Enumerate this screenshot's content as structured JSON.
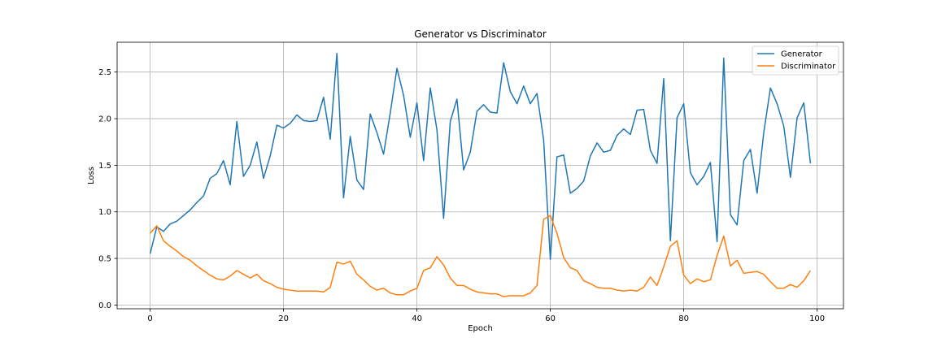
{
  "chart_data": {
    "type": "line",
    "title": "Generator vs Discriminator",
    "xlabel": "Epoch",
    "ylabel": "Loss",
    "xlim": [
      -4.95,
      103.95
    ],
    "ylim": [
      -0.04,
      2.82
    ],
    "xticks": [
      0,
      20,
      40,
      60,
      80,
      100
    ],
    "yticks": [
      0.0,
      0.5,
      1.0,
      1.5,
      2.0,
      2.5
    ],
    "ytick_labels": [
      "0.0",
      "0.5",
      "1.0",
      "1.5",
      "2.0",
      "2.5"
    ],
    "grid": true,
    "legend_position": "top-right",
    "x": [
      0,
      1,
      2,
      3,
      4,
      5,
      6,
      7,
      8,
      9,
      10,
      11,
      12,
      13,
      14,
      15,
      16,
      17,
      18,
      19,
      20,
      21,
      22,
      23,
      24,
      25,
      26,
      27,
      28,
      29,
      30,
      31,
      32,
      33,
      34,
      35,
      36,
      37,
      38,
      39,
      40,
      41,
      42,
      43,
      44,
      45,
      46,
      47,
      48,
      49,
      50,
      51,
      52,
      53,
      54,
      55,
      56,
      57,
      58,
      59,
      60,
      61,
      62,
      63,
      64,
      65,
      66,
      67,
      68,
      69,
      70,
      71,
      72,
      73,
      74,
      75,
      76,
      77,
      78,
      79,
      80,
      81,
      82,
      83,
      84,
      85,
      86,
      87,
      88,
      89,
      90,
      91,
      92,
      93,
      94,
      95,
      96,
      97,
      98,
      99
    ],
    "series": [
      {
        "name": "Generator",
        "color": "#1f77b4",
        "values": [
          0.55,
          0.84,
          0.79,
          0.87,
          0.9,
          0.96,
          1.02,
          1.1,
          1.17,
          1.36,
          1.41,
          1.55,
          1.29,
          1.97,
          1.38,
          1.5,
          1.75,
          1.36,
          1.6,
          1.93,
          1.9,
          1.95,
          2.04,
          1.98,
          1.97,
          1.98,
          2.23,
          1.78,
          2.7,
          1.15,
          1.81,
          1.34,
          1.24,
          2.05,
          1.85,
          1.62,
          2.06,
          2.54,
          2.25,
          1.8,
          2.17,
          1.55,
          2.33,
          1.88,
          0.93,
          1.97,
          2.21,
          1.45,
          1.64,
          2.08,
          2.15,
          2.07,
          2.06,
          2.6,
          2.29,
          2.16,
          2.35,
          2.16,
          2.27,
          1.77,
          0.49,
          1.59,
          1.61,
          1.2,
          1.25,
          1.33,
          1.6,
          1.74,
          1.64,
          1.66,
          1.82,
          1.89,
          1.83,
          2.09,
          2.1,
          1.66,
          1.52,
          2.43,
          0.69,
          2.01,
          2.16,
          1.42,
          1.29,
          1.38,
          1.53,
          0.68,
          2.65,
          0.97,
          0.86,
          1.55,
          1.67,
          1.2,
          1.85,
          2.33,
          2.16,
          1.92,
          1.37,
          2.01,
          2.17,
          1.52
        ]
      },
      {
        "name": "Discriminator",
        "color": "#ff7f0e",
        "values": [
          0.77,
          0.85,
          0.69,
          0.63,
          0.58,
          0.52,
          0.48,
          0.42,
          0.37,
          0.32,
          0.28,
          0.27,
          0.31,
          0.37,
          0.33,
          0.29,
          0.33,
          0.26,
          0.23,
          0.19,
          0.17,
          0.16,
          0.15,
          0.15,
          0.15,
          0.15,
          0.14,
          0.19,
          0.46,
          0.44,
          0.47,
          0.33,
          0.27,
          0.2,
          0.16,
          0.18,
          0.13,
          0.11,
          0.11,
          0.15,
          0.18,
          0.37,
          0.4,
          0.52,
          0.43,
          0.29,
          0.21,
          0.21,
          0.17,
          0.14,
          0.13,
          0.12,
          0.12,
          0.09,
          0.1,
          0.1,
          0.1,
          0.13,
          0.21,
          0.92,
          0.96,
          0.77,
          0.51,
          0.4,
          0.37,
          0.26,
          0.23,
          0.19,
          0.18,
          0.18,
          0.16,
          0.15,
          0.16,
          0.15,
          0.19,
          0.3,
          0.21,
          0.41,
          0.63,
          0.69,
          0.32,
          0.23,
          0.28,
          0.25,
          0.27,
          0.53,
          0.74,
          0.42,
          0.48,
          0.34,
          0.35,
          0.36,
          0.33,
          0.25,
          0.18,
          0.18,
          0.22,
          0.19,
          0.26,
          0.37
        ]
      }
    ]
  }
}
